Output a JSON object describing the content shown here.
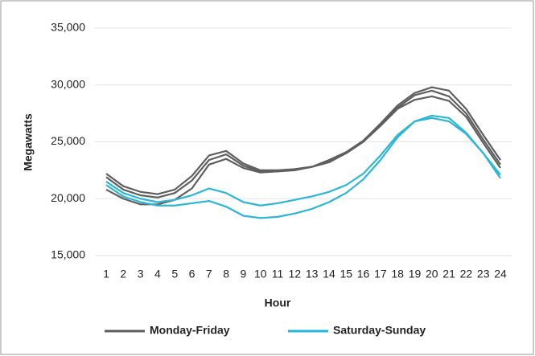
{
  "chart_data": {
    "type": "line",
    "x_label": "Hour",
    "y_label": "Megawatts",
    "x": [
      1,
      2,
      3,
      4,
      5,
      6,
      7,
      8,
      9,
      10,
      11,
      12,
      13,
      14,
      15,
      16,
      17,
      18,
      19,
      20,
      21,
      22,
      23,
      24
    ],
    "ylim": [
      15000,
      35000
    ],
    "yticks": [
      {
        "value": 15000,
        "label": "15,000"
      },
      {
        "value": 20000,
        "label": "20,000"
      },
      {
        "value": 25000,
        "label": "25,000"
      },
      {
        "value": 30000,
        "label": "30,000"
      },
      {
        "value": 35000,
        "label": "35,000"
      }
    ],
    "grid": true,
    "series": [
      {
        "name": "Monday-Friday",
        "color": "#5f5f5f",
        "lines": [
          [
            22200,
            21100,
            20600,
            20400,
            20800,
            22000,
            23800,
            24200,
            23100,
            22500,
            22500,
            22600,
            22800,
            23400,
            24100,
            25100,
            26600,
            28200,
            29300,
            29800,
            29500,
            27900,
            25600,
            23400
          ],
          [
            21900,
            20800,
            20300,
            20100,
            20500,
            21600,
            23400,
            23900,
            22900,
            22400,
            22400,
            22600,
            22800,
            23300,
            24000,
            25000,
            26500,
            28000,
            29100,
            29500,
            29000,
            27500,
            25200,
            23000
          ],
          [
            20800,
            20000,
            19500,
            19500,
            19900,
            20900,
            23000,
            23500,
            22700,
            22300,
            22400,
            22500,
            22800,
            23200,
            24000,
            25000,
            26400,
            27900,
            28700,
            29000,
            28600,
            27200,
            24900,
            22700
          ]
        ]
      },
      {
        "name": "Saturday-Sunday",
        "color": "#2ab7d6",
        "lines": [
          [
            21500,
            20500,
            20000,
            19700,
            19900,
            20300,
            20900,
            20500,
            19700,
            19400,
            19600,
            19900,
            20200,
            20600,
            21200,
            22200,
            23800,
            25600,
            26800,
            27300,
            27100,
            25800,
            24000,
            22100
          ],
          [
            21200,
            20200,
            19700,
            19400,
            19400,
            19600,
            19800,
            19300,
            18500,
            18300,
            18400,
            18700,
            19100,
            19700,
            20500,
            21700,
            23400,
            25400,
            26800,
            27100,
            26800,
            25700,
            24000,
            21800
          ]
        ]
      }
    ]
  }
}
